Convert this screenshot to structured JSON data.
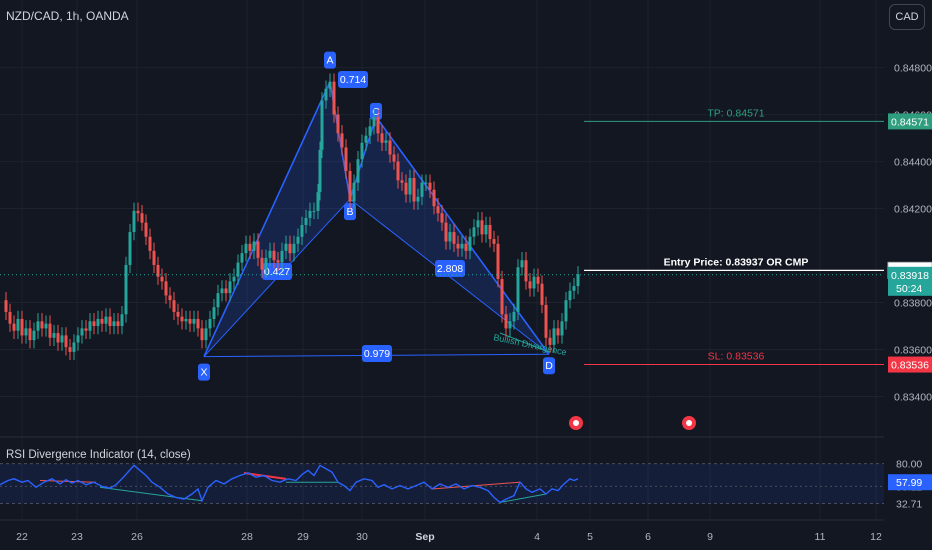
{
  "header": {
    "title": "NZD/CAD, 1h, OANDA",
    "currency": "CAD"
  },
  "colors": {
    "background": "#131722",
    "up": "#26a69a",
    "down": "#ef5350",
    "pattern_line": "#2962ff",
    "label_bg": "#2962ff",
    "tp": "#2e9e7e",
    "sl": "#f23645",
    "rsi": "#2962ff"
  },
  "chart_data": [
    {
      "type": "line",
      "title": "NZD/CAD, 1h, OANDA",
      "ylim": [
        0.833,
        0.8496
      ],
      "y_ticks": [
        "0.84800",
        "0.84600",
        "0.84400",
        "0.84200",
        "0.83800",
        "0.83600",
        "0.83400"
      ],
      "x_ticks": [
        "22",
        "23",
        "26",
        "28",
        "29",
        "30",
        "Sep",
        "4",
        "5",
        "6",
        "9",
        "11",
        "12"
      ],
      "price_series": [
        [
          0,
          0.8381
        ],
        [
          6,
          0.8376
        ],
        [
          10,
          0.8371
        ],
        [
          14,
          0.8368
        ],
        [
          18,
          0.8373
        ],
        [
          22,
          0.8366
        ],
        [
          26,
          0.8369
        ],
        [
          30,
          0.8364
        ],
        [
          34,
          0.8368
        ],
        [
          38,
          0.8372
        ],
        [
          42,
          0.8369
        ],
        [
          46,
          0.8371
        ],
        [
          50,
          0.8365
        ],
        [
          54,
          0.8367
        ],
        [
          58,
          0.8363
        ],
        [
          62,
          0.8366
        ],
        [
          66,
          0.8361
        ],
        [
          70,
          0.8359
        ],
        [
          74,
          0.8363
        ],
        [
          78,
          0.8366
        ],
        [
          82,
          0.8369
        ],
        [
          86,
          0.8368
        ],
        [
          90,
          0.8372
        ],
        [
          94,
          0.837
        ],
        [
          98,
          0.8373
        ],
        [
          102,
          0.8371
        ],
        [
          106,
          0.8374
        ],
        [
          110,
          0.837
        ],
        [
          114,
          0.8372
        ],
        [
          118,
          0.837
        ],
        [
          122,
          0.8375
        ],
        [
          126,
          0.8396
        ],
        [
          130,
          0.841
        ],
        [
          134,
          0.8419
        ],
        [
          138,
          0.8418
        ],
        [
          142,
          0.8414
        ],
        [
          146,
          0.8408
        ],
        [
          150,
          0.8402
        ],
        [
          154,
          0.8396
        ],
        [
          158,
          0.8391
        ],
        [
          162,
          0.8389
        ],
        [
          166,
          0.8383
        ],
        [
          170,
          0.8381
        ],
        [
          174,
          0.8376
        ],
        [
          178,
          0.8374
        ],
        [
          182,
          0.8372
        ],
        [
          186,
          0.8373
        ],
        [
          190,
          0.8371
        ],
        [
          194,
          0.8373
        ],
        [
          198,
          0.8369
        ],
        [
          202,
          0.8364
        ],
        [
          206,
          0.8369
        ],
        [
          210,
          0.8373
        ],
        [
          214,
          0.8378
        ],
        [
          218,
          0.8384
        ],
        [
          222,
          0.8386
        ],
        [
          226,
          0.8384
        ],
        [
          230,
          0.8389
        ],
        [
          234,
          0.8391
        ],
        [
          238,
          0.8397
        ],
        [
          242,
          0.8401
        ],
        [
          246,
          0.8405
        ],
        [
          250,
          0.8402
        ],
        [
          254,
          0.8406
        ],
        [
          258,
          0.8399
        ],
        [
          262,
          0.8394
        ],
        [
          266,
          0.8399
        ],
        [
          270,
          0.8402
        ],
        [
          274,
          0.8398
        ],
        [
          278,
          0.8397
        ],
        [
          282,
          0.8402
        ],
        [
          286,
          0.8405
        ],
        [
          290,
          0.8401
        ],
        [
          294,
          0.8405
        ],
        [
          298,
          0.8408
        ],
        [
          302,
          0.8413
        ],
        [
          306,
          0.8416
        ],
        [
          310,
          0.8419
        ],
        [
          314,
          0.8419
        ],
        [
          318,
          0.8427
        ],
        [
          320,
          0.8445
        ],
        [
          322,
          0.8466
        ],
        [
          326,
          0.8471
        ],
        [
          330,
          0.8474
        ],
        [
          334,
          0.846
        ],
        [
          338,
          0.8452
        ],
        [
          342,
          0.8446
        ],
        [
          346,
          0.8436
        ],
        [
          350,
          0.8423
        ],
        [
          354,
          0.8431
        ],
        [
          358,
          0.8441
        ],
        [
          362,
          0.8448
        ],
        [
          366,
          0.8451
        ],
        [
          370,
          0.8455
        ],
        [
          374,
          0.8459
        ],
        [
          378,
          0.8452
        ],
        [
          382,
          0.8448
        ],
        [
          386,
          0.8449
        ],
        [
          390,
          0.8443
        ],
        [
          394,
          0.844
        ],
        [
          398,
          0.8432
        ],
        [
          402,
          0.8431
        ],
        [
          406,
          0.8426
        ],
        [
          410,
          0.8433
        ],
        [
          414,
          0.8423
        ],
        [
          418,
          0.8425
        ],
        [
          422,
          0.8431
        ],
        [
          426,
          0.8431
        ],
        [
          430,
          0.8428
        ],
        [
          434,
          0.8421
        ],
        [
          438,
          0.8418
        ],
        [
          442,
          0.8414
        ],
        [
          446,
          0.8406
        ],
        [
          450,
          0.841
        ],
        [
          454,
          0.8405
        ],
        [
          458,
          0.8403
        ],
        [
          462,
          0.8405
        ],
        [
          466,
          0.8402
        ],
        [
          470,
          0.8408
        ],
        [
          474,
          0.8412
        ],
        [
          478,
          0.8415
        ],
        [
          482,
          0.8409
        ],
        [
          486,
          0.8413
        ],
        [
          490,
          0.8407
        ],
        [
          494,
          0.8405
        ],
        [
          498,
          0.839
        ],
        [
          502,
          0.8375
        ],
        [
          506,
          0.8369
        ],
        [
          510,
          0.8372
        ],
        [
          514,
          0.8376
        ],
        [
          518,
          0.8395
        ],
        [
          522,
          0.8398
        ],
        [
          526,
          0.8389
        ],
        [
          530,
          0.8386
        ],
        [
          534,
          0.8391
        ],
        [
          538,
          0.8388
        ],
        [
          542,
          0.8379
        ],
        [
          546,
          0.8365
        ],
        [
          550,
          0.8362
        ],
        [
          554,
          0.8369
        ],
        [
          558,
          0.8366
        ],
        [
          562,
          0.8372
        ],
        [
          566,
          0.8381
        ],
        [
          570,
          0.8385
        ],
        [
          574,
          0.8387
        ],
        [
          578,
          0.8392
        ]
      ],
      "pattern": {
        "points": [
          {
            "label": "X",
            "value": 0.8357
          },
          {
            "label": "A",
            "value": 0.8474
          },
          {
            "label": "B",
            "value": 0.8424
          },
          {
            "label": "C",
            "value": 0.8459
          },
          {
            "label": "D",
            "value": 0.8358
          }
        ],
        "ratios": [
          "0.714",
          "0.427",
          "2.808",
          "0.979"
        ],
        "divergence_label": "Bullish Divergence"
      },
      "levels": [
        {
          "name": "tp",
          "label": "TP: 0.84571",
          "value": 0.84571,
          "axis_label": "0.84571"
        },
        {
          "name": "entry",
          "label": "Entry Price: 0.83937 OR CMP",
          "value": 0.83937,
          "axis_label": "0.83937"
        },
        {
          "name": "sl",
          "label": "SL: 0.83536",
          "value": 0.83536,
          "axis_label": "0.83536"
        }
      ],
      "current_price": {
        "value": 0.83918,
        "label": "0.83918",
        "countdown": "50:24"
      }
    },
    {
      "type": "line",
      "title": "RSI Divergence Indicator (14, close)",
      "ylim": [
        25,
        82
      ],
      "y_ticks": [
        "80.00",
        "53.12",
        "32.71"
      ],
      "band": [
        32.71,
        80
      ],
      "midline": 53.12,
      "current": {
        "value": 57.99,
        "label": "57.99"
      },
      "series": [
        [
          0,
          55
        ],
        [
          8,
          60
        ],
        [
          14,
          62
        ],
        [
          22,
          58
        ],
        [
          28,
          60
        ],
        [
          36,
          52
        ],
        [
          44,
          58
        ],
        [
          52,
          62
        ],
        [
          60,
          56
        ],
        [
          66,
          61
        ],
        [
          72,
          57
        ],
        [
          78,
          60
        ],
        [
          86,
          55
        ],
        [
          94,
          58
        ],
        [
          102,
          53
        ],
        [
          110,
          51
        ],
        [
          116,
          55
        ],
        [
          122,
          62
        ],
        [
          128,
          70
        ],
        [
          134,
          78
        ],
        [
          140,
          72
        ],
        [
          146,
          66
        ],
        [
          152,
          58
        ],
        [
          160,
          52
        ],
        [
          168,
          44
        ],
        [
          176,
          40
        ],
        [
          184,
          38
        ],
        [
          192,
          44
        ],
        [
          198,
          50
        ],
        [
          202,
          36
        ],
        [
          208,
          52
        ],
        [
          216,
          60
        ],
        [
          224,
          56
        ],
        [
          232,
          62
        ],
        [
          240,
          66
        ],
        [
          248,
          69
        ],
        [
          256,
          64
        ],
        [
          264,
          66
        ],
        [
          272,
          60
        ],
        [
          280,
          58
        ],
        [
          288,
          62
        ],
        [
          296,
          60
        ],
        [
          302,
          67
        ],
        [
          308,
          72
        ],
        [
          314,
          66
        ],
        [
          320,
          78
        ],
        [
          326,
          74
        ],
        [
          332,
          70
        ],
        [
          338,
          58
        ],
        [
          344,
          54
        ],
        [
          350,
          48
        ],
        [
          356,
          58
        ],
        [
          364,
          62
        ],
        [
          372,
          60
        ],
        [
          378,
          52
        ],
        [
          384,
          55
        ],
        [
          392,
          50
        ],
        [
          400,
          54
        ],
        [
          408,
          50
        ],
        [
          416,
          54
        ],
        [
          424,
          58
        ],
        [
          432,
          50
        ],
        [
          440,
          56
        ],
        [
          448,
          52
        ],
        [
          456,
          56
        ],
        [
          464,
          50
        ],
        [
          472,
          54
        ],
        [
          480,
          52
        ],
        [
          488,
          48
        ],
        [
          494,
          40
        ],
        [
          500,
          34
        ],
        [
          506,
          38
        ],
        [
          514,
          42
        ],
        [
          520,
          58
        ],
        [
          526,
          50
        ],
        [
          532,
          46
        ],
        [
          540,
          50
        ],
        [
          546,
          44
        ],
        [
          552,
          50
        ],
        [
          558,
          48
        ],
        [
          564,
          56
        ],
        [
          570,
          62
        ],
        [
          574,
          60
        ],
        [
          578,
          62
        ]
      ]
    }
  ]
}
